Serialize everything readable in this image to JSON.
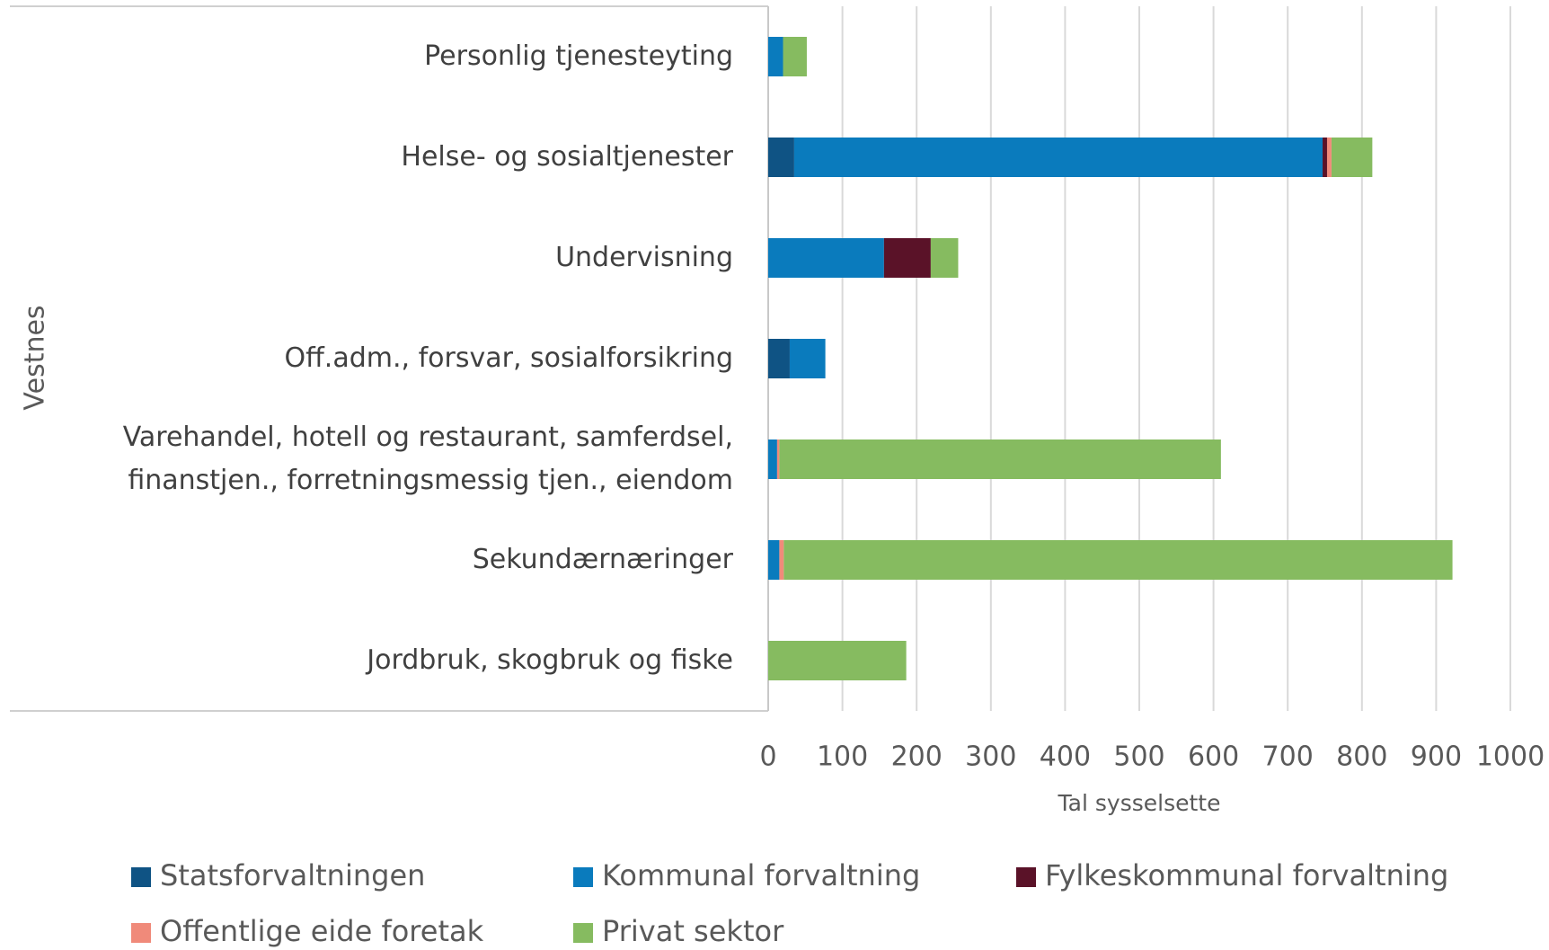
{
  "chart_data": {
    "type": "stacked-bar-horizontal",
    "y_axis_label": "Vestnes",
    "x_axis_label": "Tal sysselsette",
    "categories": [
      "Personlig tjenesteyting",
      "Helse- og sosialtjenester",
      "Undervisning",
      "Off.adm., forsvar, sosialforsikring",
      "Varehandel, hotell og restaurant, samferdsel, finanstjen., forretningsmessig tjen., eiendom",
      "Sekundærnæringer",
      "Jordbruk, skogbruk og fiske"
    ],
    "series": [
      {
        "name": "Statsforvaltningen",
        "color": "#0f5384",
        "values": [
          0,
          35,
          0,
          29,
          0,
          0,
          0
        ]
      },
      {
        "name": "Kommunal forvaltning",
        "color": "#0a7bbd",
        "values": [
          20,
          712,
          156,
          48,
          12,
          15,
          0
        ]
      },
      {
        "name": "Fylkeskommunal forvaltning",
        "color": "#5a1228",
        "values": [
          0,
          6,
          63,
          0,
          0,
          0,
          0
        ]
      },
      {
        "name": "Offentlige eide foretak",
        "color": "#f08a7a",
        "values": [
          0,
          6,
          0,
          0,
          3,
          6,
          0
        ]
      },
      {
        "name": "Privat sektor",
        "color": "#86bb60",
        "values": [
          32,
          55,
          37,
          0,
          595,
          901,
          186
        ]
      }
    ],
    "xlim": [
      0,
      1000
    ],
    "xticks": [
      0,
      100,
      200,
      300,
      400,
      500,
      600,
      700,
      800,
      900,
      1000
    ],
    "grid": true,
    "legend": "bottom"
  }
}
